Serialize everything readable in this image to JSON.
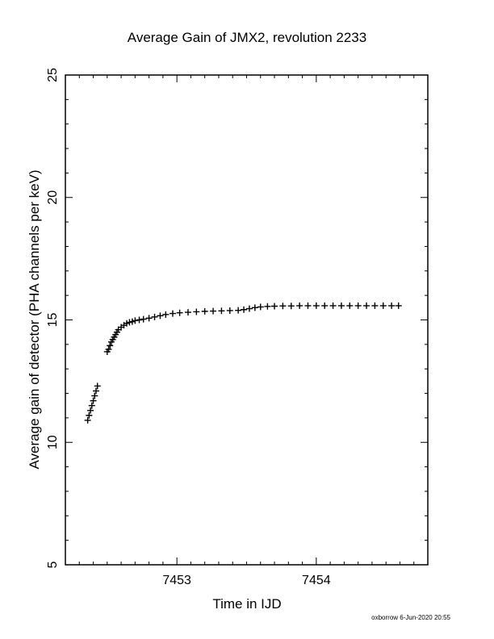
{
  "chart_data": {
    "type": "scatter",
    "title": "Average Gain of JMX2, revolution 2233",
    "xlabel": "Time in IJD",
    "ylabel": "Average gain of detector (PHA channels per keV)",
    "xlim": [
      7452.2,
      7454.8
    ],
    "ylim": [
      5,
      25
    ],
    "x_ticks": [
      7453,
      7454
    ],
    "y_ticks": [
      5,
      10,
      15,
      20,
      25
    ],
    "x_minor_step": 0.1,
    "y_minor_step": 1,
    "grid": false,
    "marker": "plus",
    "marker_color": "#000000",
    "series": [
      {
        "x": [
          7452.36,
          7452.37,
          7452.38,
          7452.39,
          7452.4,
          7452.41,
          7452.42,
          7452.43,
          7452.5,
          7452.51,
          7452.52,
          7452.53,
          7452.54,
          7452.55,
          7452.56,
          7452.57,
          7452.58,
          7452.6,
          7452.62,
          7452.64,
          7452.66,
          7452.68,
          7452.7,
          7452.73,
          7452.76,
          7452.8,
          7452.84,
          7452.88,
          7452.92,
          7452.97,
          7453.02,
          7453.08,
          7453.14,
          7453.2,
          7453.26,
          7453.32,
          7453.38,
          7453.44,
          7453.48,
          7453.52,
          7453.56,
          7453.6,
          7453.65,
          7453.7,
          7453.76,
          7453.82,
          7453.88,
          7453.94,
          7454.0,
          7454.06,
          7454.12,
          7454.18,
          7454.24,
          7454.3,
          7454.36,
          7454.42,
          7454.48,
          7454.54,
          7454.59
        ],
        "y": [
          10.9,
          11.1,
          11.3,
          11.5,
          11.7,
          11.9,
          12.1,
          12.3,
          13.7,
          13.8,
          13.95,
          14.1,
          14.2,
          14.3,
          14.4,
          14.5,
          14.6,
          14.7,
          14.78,
          14.86,
          14.9,
          14.93,
          14.97,
          15.0,
          15.03,
          15.07,
          15.12,
          15.17,
          15.22,
          15.26,
          15.29,
          15.31,
          15.33,
          15.35,
          15.36,
          15.37,
          15.38,
          15.39,
          15.42,
          15.46,
          15.5,
          15.53,
          15.55,
          15.56,
          15.57,
          15.57,
          15.58,
          15.58,
          15.58,
          15.58,
          15.58,
          15.58,
          15.58,
          15.58,
          15.58,
          15.58,
          15.58,
          15.58,
          15.58
        ]
      }
    ]
  },
  "footer": {
    "credit": "oxborrow  6-Jun-2020 20:55"
  }
}
